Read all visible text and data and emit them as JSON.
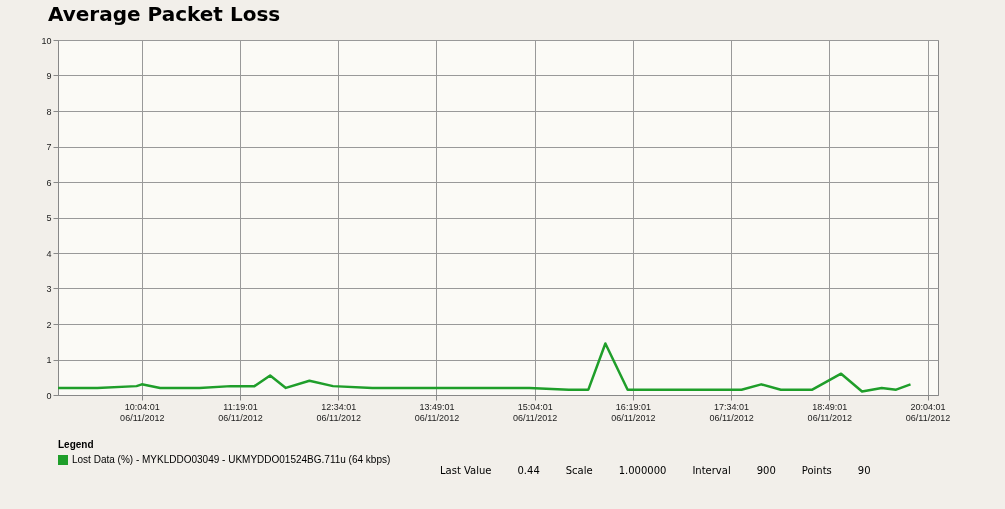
{
  "chart_data": {
    "type": "line",
    "title": "Average Packet Loss",
    "x": [
      "2012-06-11T09:00",
      "2012-06-11T09:30",
      "2012-06-11T10:00",
      "2012-06-11T10:04",
      "2012-06-11T10:18",
      "2012-06-11T10:48",
      "2012-06-11T11:12",
      "2012-06-11T11:30",
      "2012-06-11T11:42",
      "2012-06-11T11:54",
      "2012-06-11T12:12",
      "2012-06-11T12:30",
      "2012-06-11T13:00",
      "2012-06-11T13:30",
      "2012-06-11T14:00",
      "2012-06-11T14:30",
      "2012-06-11T15:00",
      "2012-06-11T15:30",
      "2012-06-11T15:45",
      "2012-06-11T15:58",
      "2012-06-11T16:15",
      "2012-06-11T16:48",
      "2012-06-11T17:18",
      "2012-06-11T17:42",
      "2012-06-11T17:57",
      "2012-06-11T18:12",
      "2012-06-11T18:36",
      "2012-06-11T18:58",
      "2012-06-11T19:14",
      "2012-06-11T19:29",
      "2012-06-11T19:40",
      "2012-06-11T19:51"
    ],
    "series": [
      {
        "name": "Lost Data (%) - MYKLDDO03049 - UKMYDDO01524BG.711u (64 kbps)",
        "color": "#1f9e2a",
        "values": [
          0.2,
          0.2,
          0.25,
          0.3,
          0.2,
          0.2,
          0.25,
          0.25,
          0.55,
          0.2,
          0.4,
          0.25,
          0.2,
          0.2,
          0.2,
          0.2,
          0.2,
          0.15,
          0.15,
          1.45,
          0.15,
          0.15,
          0.15,
          0.15,
          0.3,
          0.15,
          0.15,
          0.6,
          0.1,
          0.2,
          0.15,
          0.3
        ]
      }
    ],
    "xlim": [
      "2012-06-11T09:00",
      "2012-06-11T20:12"
    ],
    "xticks": [
      {
        "value": "2012-06-11T10:04",
        "label": "10:04:01\n06/11/2012"
      },
      {
        "value": "2012-06-11T11:19",
        "label": "11:19:01\n06/11/2012"
      },
      {
        "value": "2012-06-11T12:34",
        "label": "12:34:01\n06/11/2012"
      },
      {
        "value": "2012-06-11T13:49",
        "label": "13:49:01\n06/11/2012"
      },
      {
        "value": "2012-06-11T15:04",
        "label": "15:04:01\n06/11/2012"
      },
      {
        "value": "2012-06-11T16:19",
        "label": "16:19:01\n06/11/2012"
      },
      {
        "value": "2012-06-11T17:34",
        "label": "17:34:01\n06/11/2012"
      },
      {
        "value": "2012-06-11T18:49",
        "label": "18:49:01\n06/11/2012"
      },
      {
        "value": "2012-06-11T20:04",
        "label": "20:04:01\n06/11/2012"
      }
    ],
    "ylim": [
      0,
      10
    ],
    "yticks": [
      0,
      1,
      2,
      3,
      4,
      5,
      6,
      7,
      8,
      9,
      10
    ],
    "grid": true,
    "marker": "none",
    "line_style": "solid",
    "legend": "bottom",
    "legend_title": "Legend",
    "annotations": [
      "Last Value",
      "0.44",
      "Scale",
      "1.000000",
      "Interval",
      "900",
      "Points",
      "90"
    ]
  }
}
